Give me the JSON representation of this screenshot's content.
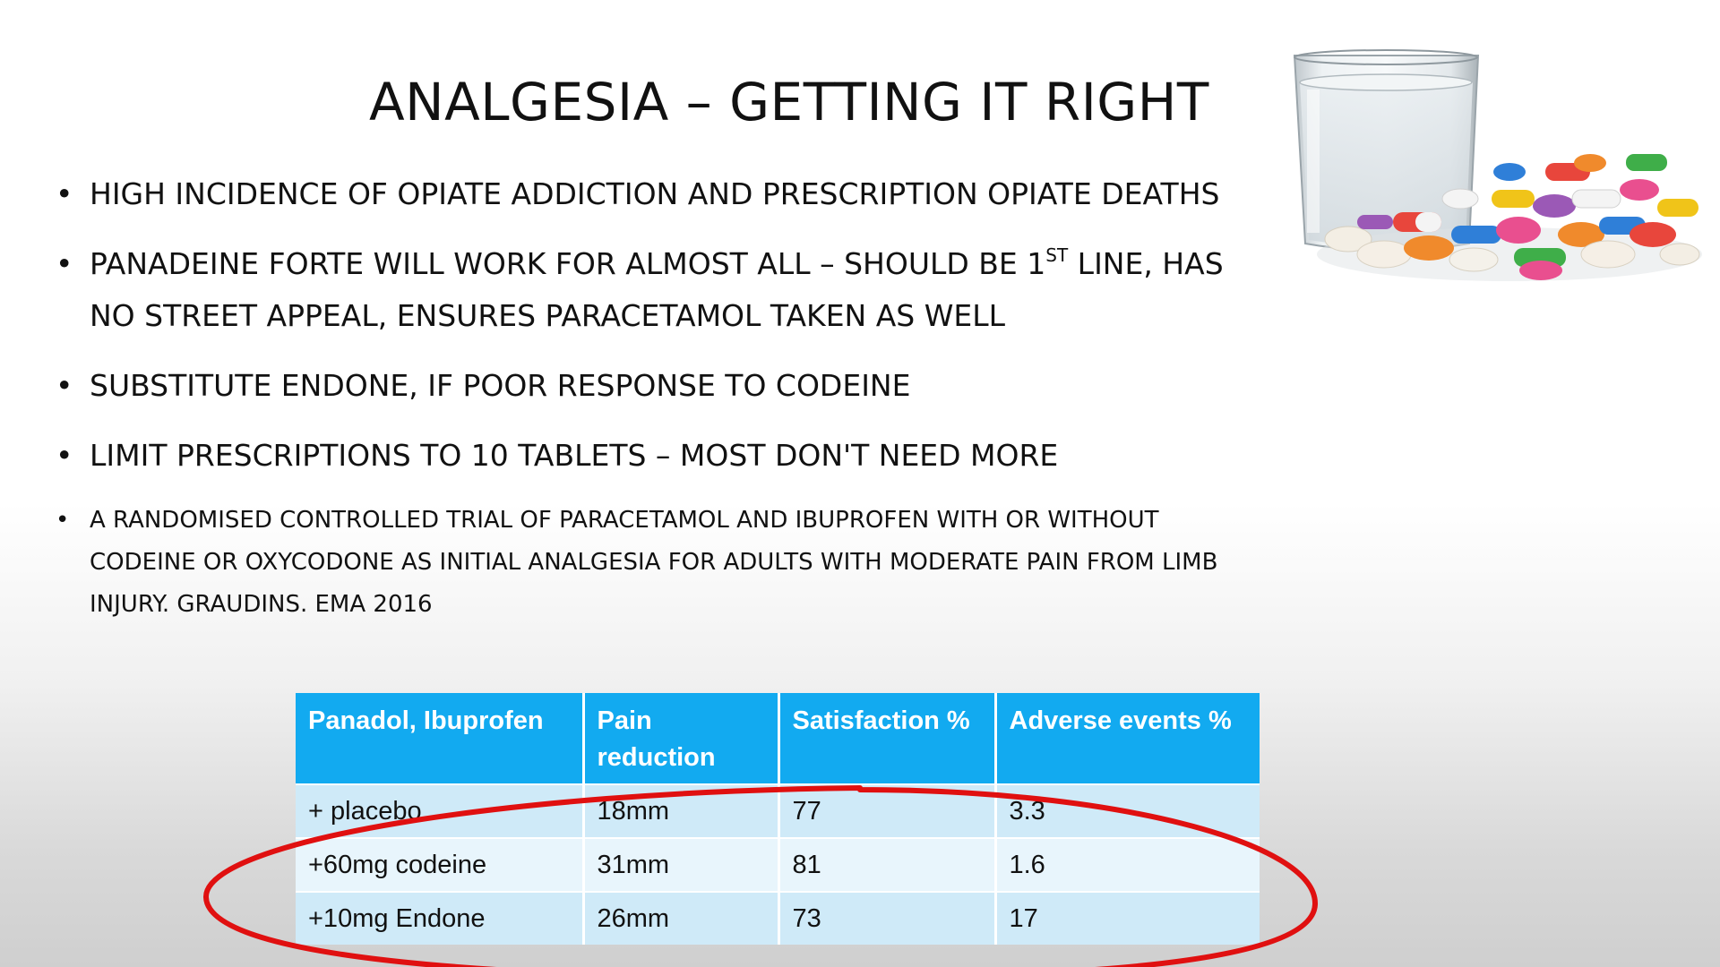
{
  "slide": {
    "title": "ANALGESIA – GETTING IT RIGHT",
    "bullets": [
      {
        "text": "HIGH INCIDENCE OF OPIATE ADDICTION AND PRESCRIPTION OPIATE DEATHS"
      },
      {
        "text_before": "PANADEINE FORTE WILL WORK FOR ALMOST ALL – SHOULD BE 1",
        "superscript": "ST",
        "text_after": " LINE, HAS NO STREET APPEAL, ENSURES PARACETAMOL TAKEN AS WELL"
      },
      {
        "text": "SUBSTITUTE ENDONE, IF POOR RESPONSE TO CODEINE"
      },
      {
        "text": "LIMIT PRESCRIPTIONS TO 10 TABLETS – MOST DON'T NEED MORE"
      },
      {
        "text": "A RANDOMISED CONTROLLED TRIAL OF PARACETAMOL AND IBUPROFEN WITH OR WITHOUT CODEINE OR OXYCODONE AS INITIAL ANALGESIA FOR ADULTS WITH MODERATE PAIN FROM LIMB INJURY. GRAUDINS. EMA 2016"
      }
    ],
    "bullet_symbol": "•"
  },
  "table": {
    "headers": [
      "Panadol, Ibuprofen",
      "Pain reduction",
      "Satisfaction %",
      "Adverse events %"
    ],
    "rows": [
      [
        "+ placebo",
        "18mm",
        "77",
        "3.3"
      ],
      [
        "+60mg codeine",
        "31mm",
        "81",
        "1.6"
      ],
      [
        "+10mg Endone",
        "26mm",
        "73",
        "17"
      ]
    ]
  },
  "colors": {
    "header_bg": "#12aaf0",
    "row_odd_bg": "#cfeaf8",
    "row_even_bg": "#e8f5fc",
    "highlight_ring": "#e01010"
  },
  "icons": {
    "illustration": "glass-of-water-and-pills-illustration"
  }
}
